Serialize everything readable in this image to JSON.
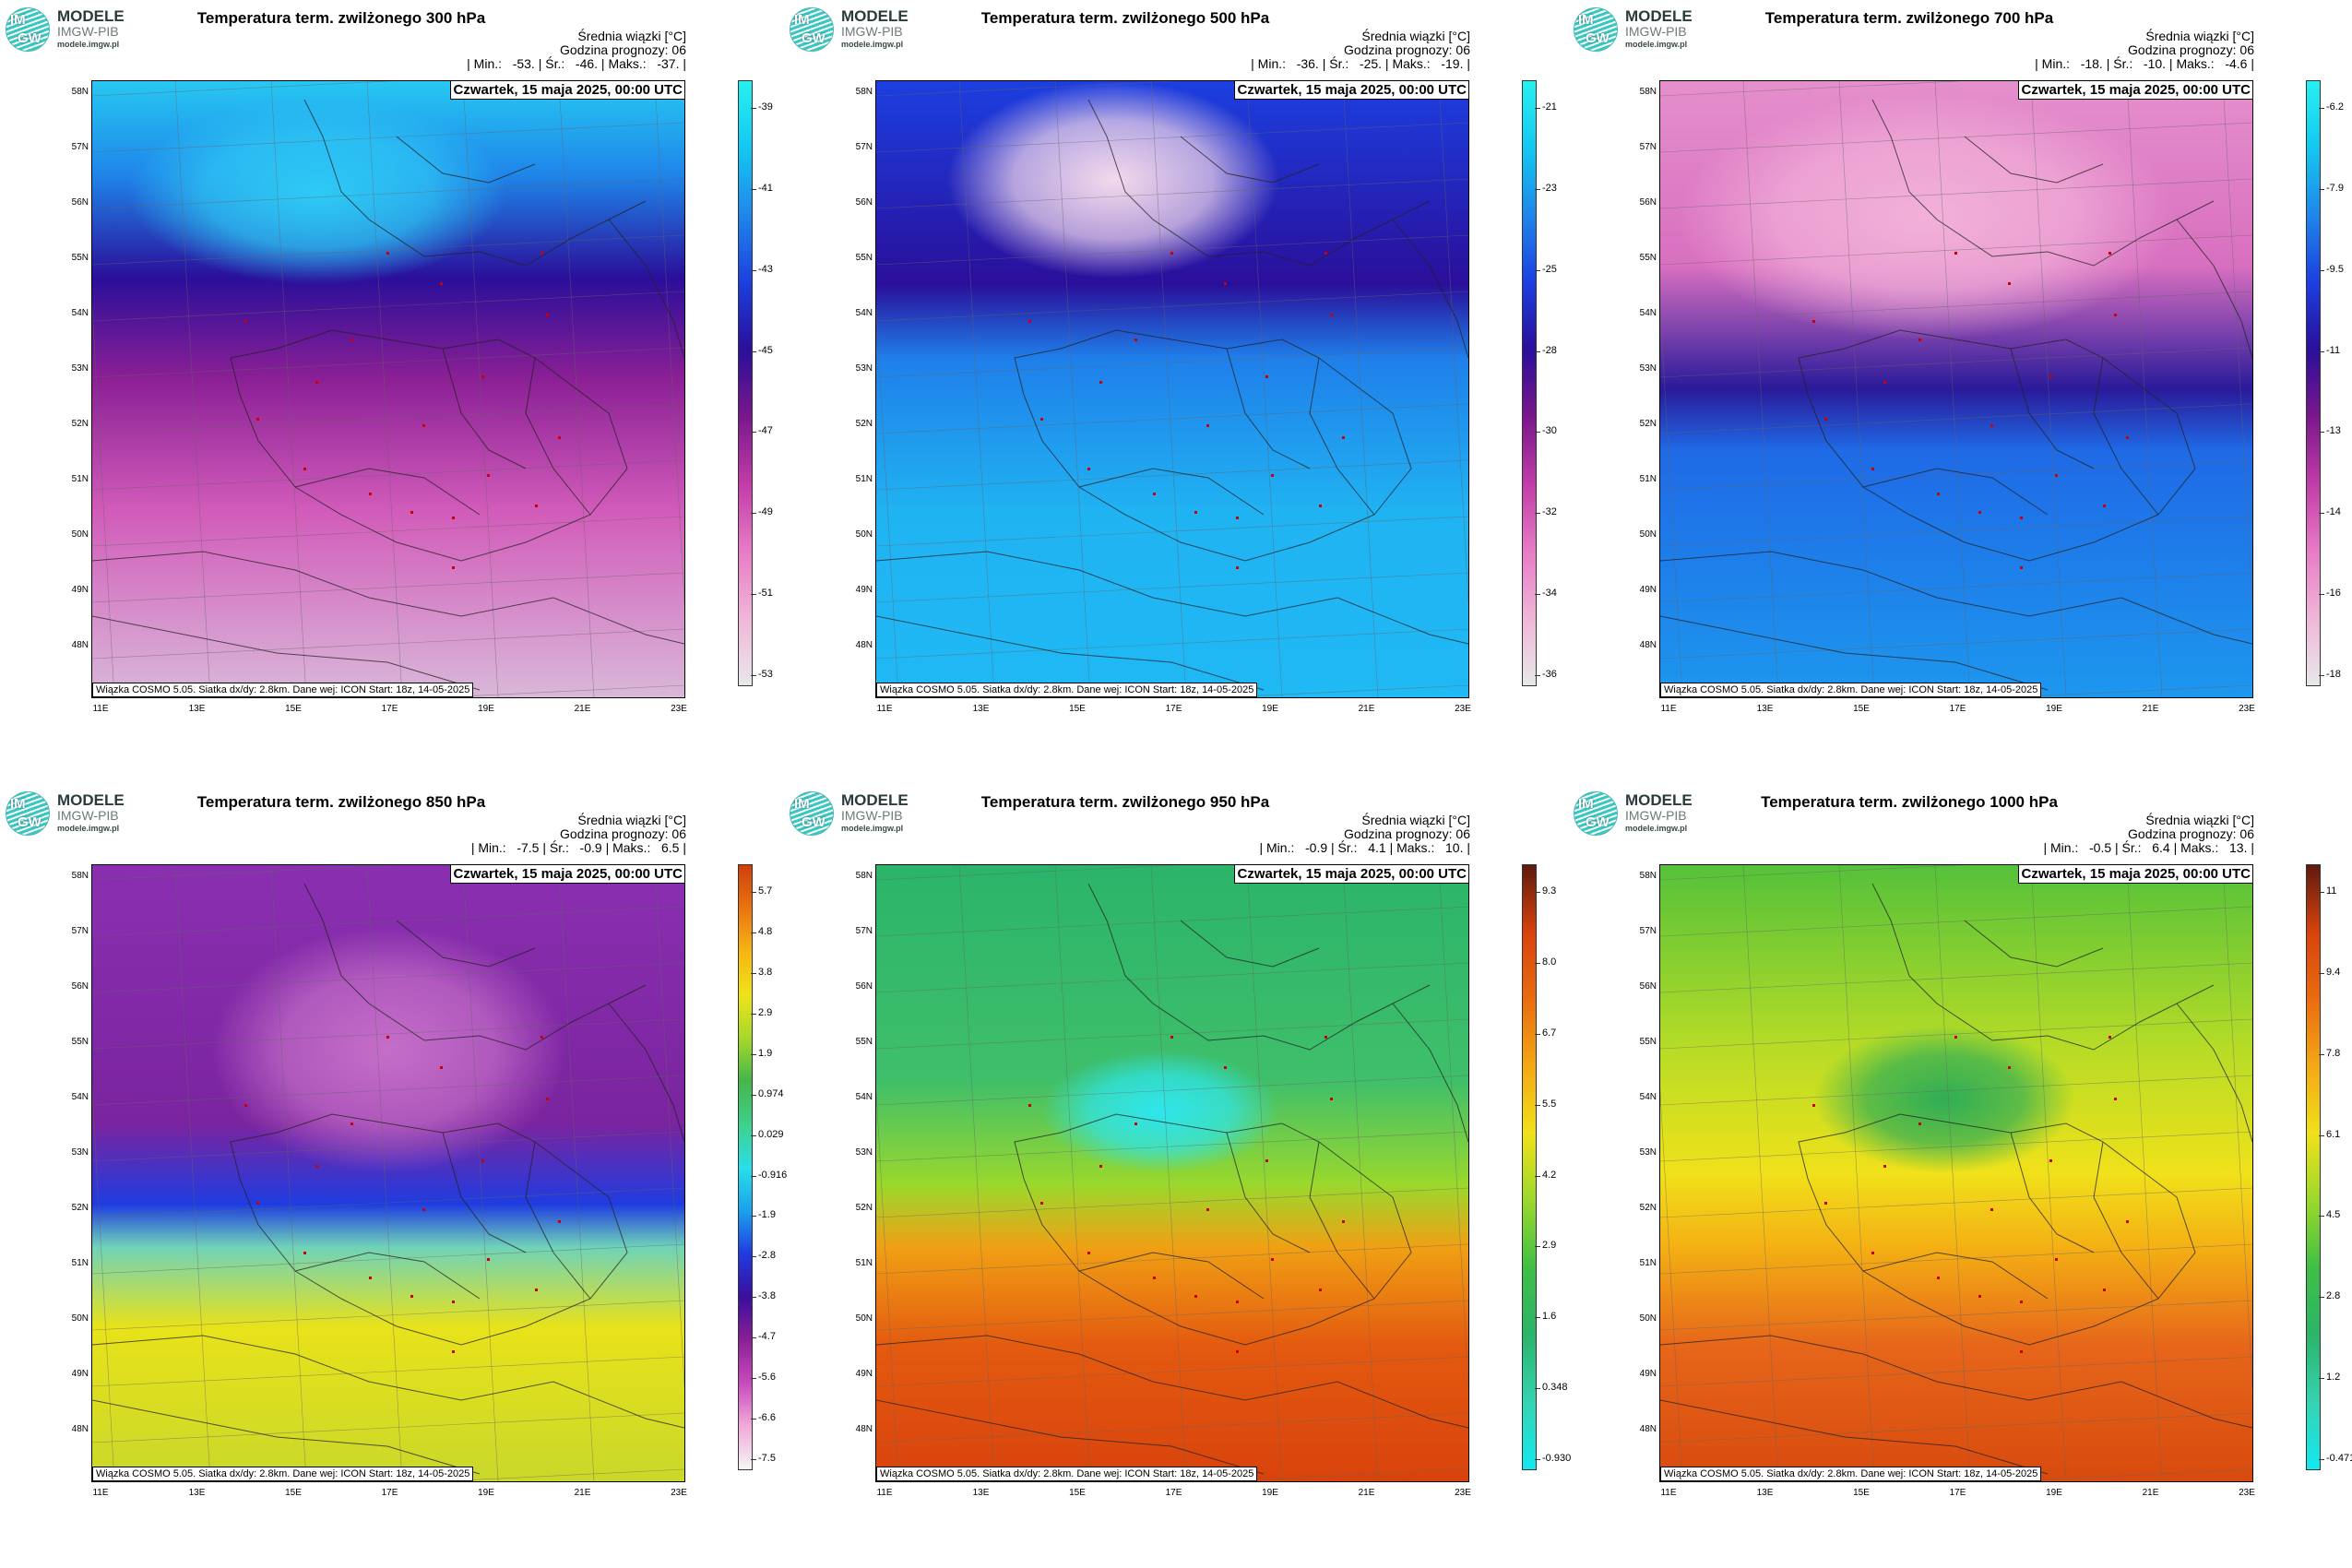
{
  "logo": {
    "short_top": "IM",
    "short_bottom": "GW",
    "name": "MODELE",
    "org": "IMGW-PIB",
    "url": "modele.imgw.pl"
  },
  "common": {
    "mean_label": "Średnia wiązki [°C]",
    "forecast_hour": "Godzina prognozy: 06",
    "date": "Czwartek, 15 maja 2025, 00:00 UTC",
    "source": "Wiązka COSMO 5.05. Siatka dx/dy: 2.8km. Dane wej: ICON Start: 18z, 14-05-2025",
    "lat_labels": [
      "58N",
      "57N",
      "56N",
      "55N",
      "54N",
      "53N",
      "52N",
      "51N",
      "50N",
      "49N",
      "48N"
    ],
    "lon_labels": [
      "11E",
      "13E",
      "15E",
      "17E",
      "19E",
      "21E",
      "23E"
    ]
  },
  "panels": [
    {
      "title": "Temperatura term. zwilżonego 300 hPa",
      "stats": "| Min.:   -53. | Śr.:   -46. | Maks.:   -37. |",
      "scale": "cold",
      "colorbar": [
        "-39",
        "-41",
        "-43",
        "-45",
        "-47",
        "-49",
        "-51",
        "-53"
      ]
    },
    {
      "title": "Temperatura term. zwilżonego 500 hPa",
      "stats": "| Min.:   -36. | Śr.:   -25. | Maks.:   -19. |",
      "scale": "cold",
      "colorbar": [
        "-21",
        "-23",
        "-25",
        "-28",
        "-30",
        "-32",
        "-34",
        "-36"
      ]
    },
    {
      "title": "Temperatura term. zwilżonego 700 hPa",
      "stats": "| Min.:   -18. | Śr.:   -10. | Maks.:   -4.6 |",
      "scale": "cold",
      "colorbar": [
        "-6.2",
        "-7.9",
        "-9.5",
        "-11",
        "-13",
        "-14",
        "-16",
        "-18"
      ]
    },
    {
      "title": "Temperatura term. zwilżonego 850 hPa",
      "stats": "| Min.:   -7.5 | Śr.:   -0.9 | Maks.:   6.5 |",
      "scale": "full",
      "colorbar": [
        "5.7",
        "4.8",
        "3.8",
        "2.9",
        "1.9",
        "0.974",
        "0.029",
        "-0.916",
        "-1.9",
        "-2.8",
        "-3.8",
        "-4.7",
        "-5.6",
        "-6.6",
        "-7.5"
      ]
    },
    {
      "title": "Temperatura term. zwilżonego 950 hPa",
      "stats": "| Min.:   -0.9 | Śr.:   4.1 | Maks.:   10. |",
      "scale": "warm",
      "colorbar": [
        "9.3",
        "8.0",
        "6.7",
        "5.5",
        "4.2",
        "2.9",
        "1.6",
        "0.348",
        "-0.930"
      ]
    },
    {
      "title": "Temperatura term. zwilżonego 1000 hPa",
      "stats": "| Min.:   -0.5 | Śr.:   6.4 | Maks.:   13. |",
      "scale": "warm",
      "colorbar": [
        "11",
        "9.4",
        "7.8",
        "6.1",
        "4.5",
        "2.8",
        "1.2",
        "-0.471"
      ]
    }
  ],
  "colors": {
    "cold": [
      "#e8e8ea",
      "#f0b6d8",
      "#e77bc6",
      "#c23ca8",
      "#7a178c",
      "#2a0f9a",
      "#1c3fe0",
      "#1f86ea",
      "#14c7f2",
      "#27f0f0"
    ],
    "full": [
      "#f5f5f5",
      "#f2a9d9",
      "#c84bbd",
      "#8a1f95",
      "#3a0e9e",
      "#1f3ce0",
      "#1ba2ec",
      "#2adfe7",
      "#3fd08a",
      "#46b64a",
      "#a7d82a",
      "#f0e31a",
      "#f6b514",
      "#ea7410",
      "#cf3f0c"
    ],
    "warm": [
      "#14e8f0",
      "#35d3b2",
      "#2bb46a",
      "#3fbf45",
      "#9bd82c",
      "#f0e11a",
      "#f4a814",
      "#e96c10",
      "#d8430c",
      "#5e1a0f"
    ]
  }
}
